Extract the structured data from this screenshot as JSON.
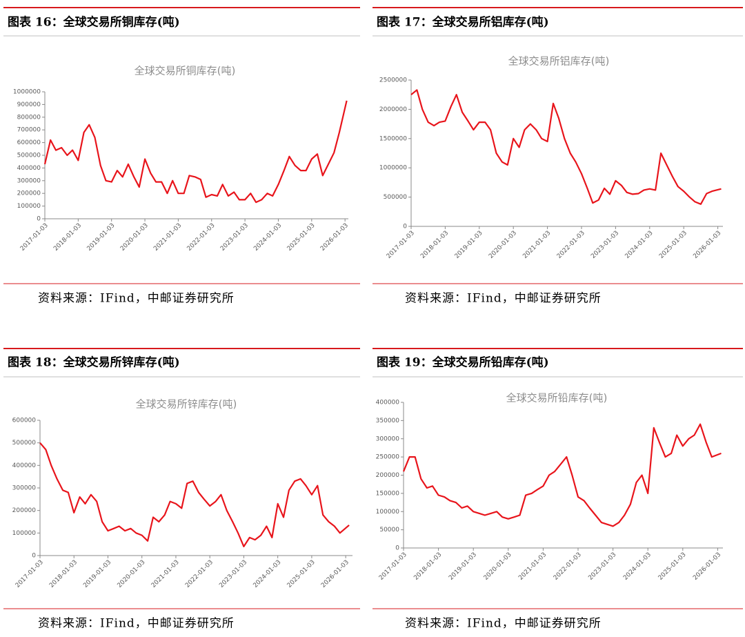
{
  "chart_data": [
    {
      "type": "line",
      "caption": "图表 16：全球交易所铜库存(吨)",
      "title": "全球交易所铜库存(吨)",
      "source": "资料来源：IFind，中邮证券研究所",
      "color": "#e8141b",
      "x": [
        2017,
        2017.17,
        2017.33,
        2017.5,
        2017.67,
        2017.83,
        2018,
        2018.17,
        2018.33,
        2018.5,
        2018.67,
        2018.83,
        2019,
        2019.17,
        2019.33,
        2019.5,
        2019.67,
        2019.83,
        2020,
        2020.17,
        2020.33,
        2020.5,
        2020.67,
        2020.83,
        2021,
        2021.17,
        2021.33,
        2021.5,
        2021.67,
        2021.83,
        2022,
        2022.17,
        2022.33,
        2022.5,
        2022.67,
        2022.83,
        2023,
        2023.17,
        2023.33,
        2023.5,
        2023.67,
        2023.83,
        2024,
        2024.17,
        2024.33,
        2024.5,
        2024.67,
        2024.83,
        2025,
        2025.17,
        2025.33,
        2025.5,
        2025.67,
        2025.83,
        2026.05
      ],
      "values": [
        430000,
        620000,
        540000,
        560000,
        500000,
        540000,
        460000,
        680000,
        740000,
        640000,
        420000,
        300000,
        290000,
        380000,
        330000,
        430000,
        330000,
        250000,
        470000,
        360000,
        290000,
        290000,
        200000,
        300000,
        200000,
        200000,
        340000,
        330000,
        310000,
        170000,
        190000,
        180000,
        270000,
        180000,
        210000,
        150000,
        150000,
        200000,
        130000,
        150000,
        200000,
        180000,
        270000,
        380000,
        490000,
        420000,
        380000,
        380000,
        470000,
        510000,
        340000,
        430000,
        520000,
        680000,
        930000
      ],
      "xlim": [
        2017,
        2026.1
      ],
      "ylim": [
        0,
        1000000
      ],
      "xticks": [
        {
          "value": 2017,
          "label": "2017-01-03"
        },
        {
          "value": 2018,
          "label": "2018-01-03"
        },
        {
          "value": 2019,
          "label": "2019-01-03"
        },
        {
          "value": 2020,
          "label": "2020-01-03"
        },
        {
          "value": 2021,
          "label": "2021-01-03"
        },
        {
          "value": 2022,
          "label": "2022-01-03"
        },
        {
          "value": 2023,
          "label": "2023-01-03"
        },
        {
          "value": 2024,
          "label": "2024-01-03"
        },
        {
          "value": 2025,
          "label": "2025-01-03"
        },
        {
          "value": 2026,
          "label": "2026-01-03"
        }
      ],
      "yticks": [
        0,
        100000,
        200000,
        300000,
        400000,
        500000,
        600000,
        700000,
        800000,
        900000,
        1000000
      ]
    },
    {
      "type": "line",
      "caption": "图表 17：全球交易所铝库存(吨)",
      "title": "全球交易所铝库存(吨)",
      "source": "资料来源：IFind，中邮证券研究所",
      "color": "#e8141b",
      "x": [
        2017,
        2017.17,
        2017.33,
        2017.5,
        2017.67,
        2017.83,
        2018,
        2018.17,
        2018.33,
        2018.5,
        2018.67,
        2018.83,
        2019,
        2019.17,
        2019.33,
        2019.5,
        2019.67,
        2019.83,
        2020,
        2020.17,
        2020.33,
        2020.5,
        2020.67,
        2020.83,
        2021,
        2021.17,
        2021.33,
        2021.5,
        2021.67,
        2021.83,
        2022,
        2022.17,
        2022.33,
        2022.5,
        2022.67,
        2022.83,
        2023,
        2023.17,
        2023.33,
        2023.5,
        2023.67,
        2023.83,
        2024,
        2024.17,
        2024.33,
        2024.5,
        2024.67,
        2024.83,
        2025,
        2025.17,
        2025.33,
        2025.5,
        2025.67,
        2025.83,
        2026.1
      ],
      "values": [
        2250000,
        2330000,
        2000000,
        1780000,
        1720000,
        1780000,
        1800000,
        2050000,
        2250000,
        1950000,
        1800000,
        1650000,
        1780000,
        1780000,
        1650000,
        1250000,
        1100000,
        1050000,
        1500000,
        1350000,
        1650000,
        1750000,
        1650000,
        1500000,
        1450000,
        2100000,
        1850000,
        1500000,
        1250000,
        1100000,
        900000,
        650000,
        400000,
        450000,
        650000,
        550000,
        780000,
        700000,
        580000,
        550000,
        560000,
        620000,
        640000,
        620000,
        1250000,
        1050000,
        850000,
        680000,
        600000,
        500000,
        420000,
        380000,
        560000,
        600000,
        640000
      ],
      "xlim": [
        2017,
        2026.15
      ],
      "ylim": [
        0,
        2500000
      ],
      "xticks": [
        {
          "value": 2017,
          "label": "2017-01-03"
        },
        {
          "value": 2018,
          "label": "2018-01-03"
        },
        {
          "value": 2019,
          "label": "2019-01-03"
        },
        {
          "value": 2020,
          "label": "2020-01-03"
        },
        {
          "value": 2021,
          "label": "2021-01-03"
        },
        {
          "value": 2022,
          "label": "2022-01-03"
        },
        {
          "value": 2023,
          "label": "2023-01-03"
        },
        {
          "value": 2024,
          "label": "2024-01-03"
        },
        {
          "value": 2025,
          "label": "2025-01-03"
        },
        {
          "value": 2026,
          "label": "2026-01-03"
        }
      ],
      "yticks": [
        0,
        500000,
        1000000,
        1500000,
        2000000,
        2500000
      ]
    },
    {
      "type": "line",
      "caption": "图表 18：全球交易所锌库存(吨)",
      "title": "全球交易所锌库存(吨)",
      "source": "资料来源：IFind，中邮证券研究所",
      "color": "#e8141b",
      "x": [
        2017,
        2017.17,
        2017.33,
        2017.5,
        2017.67,
        2017.83,
        2018,
        2018.17,
        2018.33,
        2018.5,
        2018.67,
        2018.83,
        2019,
        2019.17,
        2019.33,
        2019.5,
        2019.67,
        2019.83,
        2020,
        2020.17,
        2020.33,
        2020.5,
        2020.67,
        2020.83,
        2021,
        2021.17,
        2021.33,
        2021.5,
        2021.67,
        2021.83,
        2022,
        2022.17,
        2022.33,
        2022.5,
        2022.67,
        2022.83,
        2023,
        2023.17,
        2023.33,
        2023.5,
        2023.67,
        2023.83,
        2024,
        2024.17,
        2024.33,
        2024.5,
        2024.67,
        2024.83,
        2025,
        2025.17,
        2025.33,
        2025.5,
        2025.67,
        2025.83,
        2026.1
      ],
      "values": [
        500000,
        470000,
        400000,
        340000,
        290000,
        280000,
        190000,
        260000,
        230000,
        270000,
        240000,
        150000,
        110000,
        120000,
        130000,
        110000,
        120000,
        100000,
        90000,
        65000,
        170000,
        150000,
        180000,
        240000,
        230000,
        210000,
        320000,
        330000,
        280000,
        250000,
        220000,
        240000,
        270000,
        200000,
        150000,
        100000,
        40000,
        80000,
        70000,
        90000,
        130000,
        80000,
        230000,
        170000,
        290000,
        330000,
        340000,
        310000,
        270000,
        310000,
        180000,
        150000,
        130000,
        100000,
        135000
      ],
      "xlim": [
        2017,
        2026.2
      ],
      "ylim": [
        0,
        600000
      ],
      "xticks": [
        {
          "value": 2017,
          "label": "2017-01-03"
        },
        {
          "value": 2018,
          "label": "2018-01-03"
        },
        {
          "value": 2019,
          "label": "2019-01-03"
        },
        {
          "value": 2020,
          "label": "2020-01-03"
        },
        {
          "value": 2021,
          "label": "2021-01-03"
        },
        {
          "value": 2022,
          "label": "2022-01-03"
        },
        {
          "value": 2023,
          "label": "2023-01-03"
        },
        {
          "value": 2024,
          "label": "2024-01-03"
        },
        {
          "value": 2025,
          "label": "2025-01-03"
        },
        {
          "value": 2026,
          "label": "2026-01-03"
        }
      ],
      "yticks": [
        0,
        100000,
        200000,
        300000,
        400000,
        500000,
        600000
      ]
    },
    {
      "type": "line",
      "caption": "图表 19：全球交易所铅库存(吨)",
      "title": "全球交易所铅库存(吨)",
      "source": "资料来源：IFind，中邮证券研究所",
      "color": "#e8141b",
      "x": [
        2017,
        2017.17,
        2017.33,
        2017.5,
        2017.67,
        2017.83,
        2018,
        2018.17,
        2018.33,
        2018.5,
        2018.67,
        2018.83,
        2019,
        2019.17,
        2019.33,
        2019.5,
        2019.67,
        2019.83,
        2020,
        2020.17,
        2020.33,
        2020.5,
        2020.67,
        2020.83,
        2021,
        2021.17,
        2021.33,
        2021.5,
        2021.67,
        2021.83,
        2022,
        2022.17,
        2022.33,
        2022.5,
        2022.67,
        2022.83,
        2023,
        2023.17,
        2023.33,
        2023.5,
        2023.67,
        2023.83,
        2024,
        2024.17,
        2024.33,
        2024.5,
        2024.67,
        2024.83,
        2025,
        2025.17,
        2025.33,
        2025.5,
        2025.67,
        2025.83,
        2026.1
      ],
      "values": [
        210000,
        250000,
        250000,
        190000,
        165000,
        170000,
        145000,
        140000,
        130000,
        125000,
        110000,
        115000,
        100000,
        95000,
        90000,
        95000,
        100000,
        85000,
        80000,
        85000,
        90000,
        145000,
        150000,
        160000,
        170000,
        200000,
        210000,
        230000,
        250000,
        200000,
        140000,
        130000,
        110000,
        90000,
        70000,
        65000,
        60000,
        70000,
        90000,
        120000,
        180000,
        200000,
        150000,
        330000,
        290000,
        250000,
        260000,
        310000,
        280000,
        300000,
        310000,
        340000,
        290000,
        250000,
        260000
      ],
      "xlim": [
        2017,
        2026.15
      ],
      "ylim": [
        0,
        400000
      ],
      "xticks": [
        {
          "value": 2017,
          "label": "2017-01-03"
        },
        {
          "value": 2018,
          "label": "2018-01-03"
        },
        {
          "value": 2019,
          "label": "2019-01-03"
        },
        {
          "value": 2020,
          "label": "2020-01-03"
        },
        {
          "value": 2021,
          "label": "2021-01-03"
        },
        {
          "value": 2022,
          "label": "2022-01-03"
        },
        {
          "value": 2023,
          "label": "2023-01-03"
        },
        {
          "value": 2024,
          "label": "2024-01-03"
        },
        {
          "value": 2025,
          "label": "2025-01-03"
        },
        {
          "value": 2026,
          "label": "2026-01-03"
        }
      ],
      "yticks": [
        0,
        50000,
        100000,
        150000,
        200000,
        250000,
        300000,
        350000,
        400000
      ]
    }
  ]
}
